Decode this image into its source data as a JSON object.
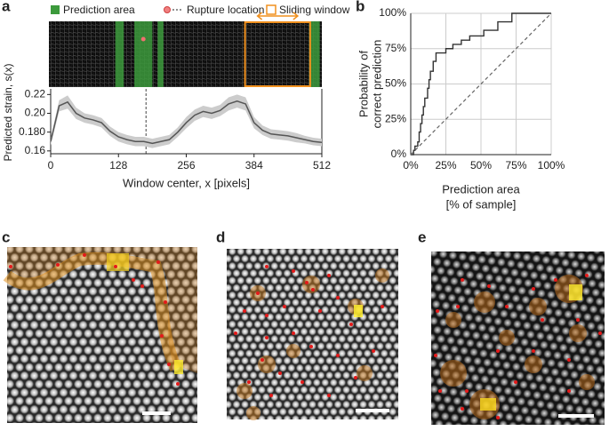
{
  "chart_data": [
    {
      "type": "line",
      "label": "a",
      "legend": [
        "Prediction area",
        "Rupture location",
        "Sliding window"
      ],
      "prediction_areas": [
        [
          122,
          138
        ],
        [
          158,
          192
        ],
        [
          202,
          213
        ],
        [
          488,
          508
        ]
      ],
      "rupture_x": 180,
      "sliding_window": [
        367,
        490
      ],
      "xlabel": "Window center, x [pixels]",
      "ylabel": "Predicted strain, s(x)",
      "x": [
        0,
        16,
        32,
        48,
        64,
        80,
        96,
        112,
        128,
        144,
        160,
        176,
        192,
        208,
        224,
        240,
        256,
        272,
        288,
        304,
        320,
        336,
        352,
        368,
        384,
        400,
        416,
        432,
        448,
        464,
        480,
        496,
        512
      ],
      "series": [
        {
          "color": "#555555",
          "band_color": "#cccccc",
          "values": [
            0.17,
            0.208,
            0.212,
            0.2,
            0.195,
            0.193,
            0.19,
            0.181,
            0.175,
            0.172,
            0.17,
            0.17,
            0.168,
            0.17,
            0.172,
            0.18,
            0.19,
            0.198,
            0.202,
            0.2,
            0.203,
            0.21,
            0.213,
            0.21,
            0.19,
            0.182,
            0.178,
            0.177,
            0.176,
            0.174,
            0.172,
            0.17,
            0.169
          ],
          "errors": [
            0.004,
            0.006,
            0.007,
            0.006,
            0.005,
            0.005,
            0.005,
            0.005,
            0.005,
            0.005,
            0.005,
            0.005,
            0.005,
            0.005,
            0.005,
            0.005,
            0.006,
            0.006,
            0.006,
            0.006,
            0.006,
            0.007,
            0.007,
            0.007,
            0.006,
            0.005,
            0.005,
            0.005,
            0.005,
            0.005,
            0.004,
            0.004,
            0.004
          ]
        }
      ],
      "xlim": [
        0,
        512
      ],
      "xticks": [
        0,
        128,
        256,
        384,
        512
      ],
      "ylim": [
        0.157,
        0.226
      ],
      "yticks": [
        0.16,
        {
          "value": 0.18,
          "label": "0.180"
        },
        {
          "value": 0.2,
          "label": "0.20"
        },
        0.22
      ]
    },
    {
      "type": "line",
      "label": "b",
      "step": true,
      "grid": true,
      "xlabel": [
        "Prediction area",
        "[% of sample]"
      ],
      "ylabel": [
        "Probability of",
        "correct prediction"
      ],
      "series": [
        {
          "color": "#333333",
          "x": [
            0,
            2,
            3,
            5,
            6,
            7,
            8,
            9,
            10,
            12,
            13,
            14,
            16,
            18,
            23,
            25,
            28,
            30,
            34,
            36,
            40,
            42,
            50,
            52,
            60,
            62,
            70,
            72,
            100
          ],
          "values": [
            0,
            3,
            6,
            9,
            16,
            22,
            28,
            34,
            40,
            47,
            53,
            59,
            66,
            72,
            72,
            75,
            75,
            78,
            78,
            81,
            81,
            84,
            84,
            88,
            88,
            94,
            94,
            100,
            100
          ]
        },
        {
          "color": "#666666",
          "dash": true,
          "x": [
            0,
            100
          ],
          "values": [
            0,
            100
          ]
        }
      ],
      "xlim": [
        0,
        100
      ],
      "ylim": [
        0,
        100
      ],
      "xticks": [
        {
          "value": 0,
          "label": "0%"
        },
        {
          "value": 25,
          "label": "25%"
        },
        {
          "value": 50,
          "label": "50%"
        },
        {
          "value": 75,
          "label": "75%"
        },
        {
          "value": 100,
          "label": "100%"
        }
      ],
      "yticks": [
        {
          "value": 0,
          "label": "0%"
        },
        {
          "value": 25,
          "label": "25%"
        },
        {
          "value": 50,
          "label": "50%"
        },
        {
          "value": 75,
          "label": "75%"
        },
        {
          "value": 100,
          "label": "100%"
        }
      ]
    }
  ],
  "images": [
    {
      "label": "c"
    },
    {
      "label": "d"
    },
    {
      "label": "e"
    }
  ]
}
